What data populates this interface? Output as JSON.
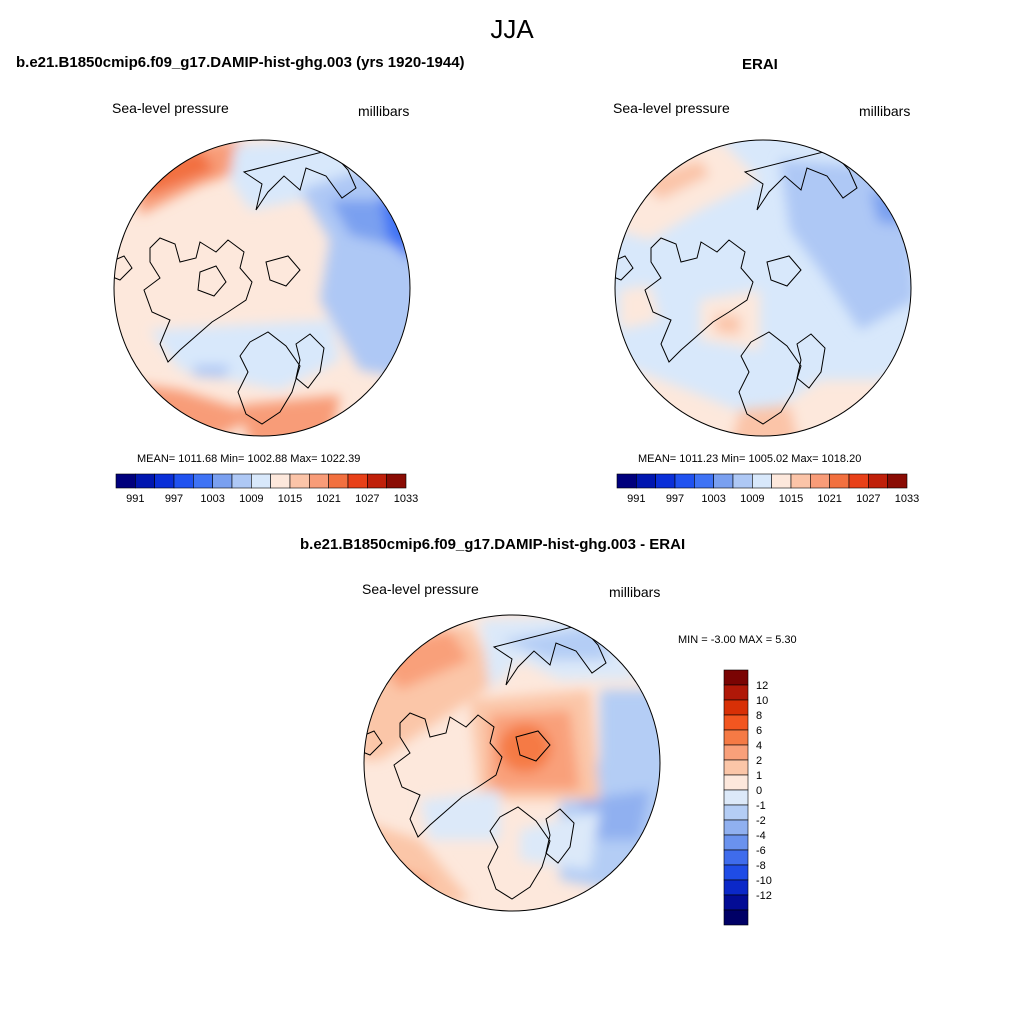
{
  "figure": {
    "season": "JJA"
  },
  "colors": {
    "abs_scale": [
      "#00007d",
      "#0016b0",
      "#0a2fd8",
      "#2052f0",
      "#3f73f5",
      "#7aa0f0",
      "#aec8f5",
      "#d8e8fb",
      "#fde8dc",
      "#fbc4a8",
      "#f89c78",
      "#f2703f",
      "#e84018",
      "#c0200a",
      "#8a0c04"
    ],
    "diff_scale": [
      "#7a0403",
      "#b01808",
      "#d83006",
      "#f25620",
      "#f57a45",
      "#f9a07a",
      "#fbc6a8",
      "#fde8dc",
      "#dce9f9",
      "#b4cdf5",
      "#90b0f0",
      "#6a92ee",
      "#3f6cec",
      "#1f4ce6",
      "#0b28c8",
      "#030c95",
      "#000066"
    ]
  },
  "panel_left": {
    "title": "b.e21.B1850cmip6.f09_g17.DAMIP-hist-ghg.003 (yrs 1920-1944)",
    "variable": "Sea-level pressure",
    "units": "millibars",
    "stats": "MEAN= 1011.68  Min= 1002.88  Max= 1022.39",
    "ticks": [
      "991",
      "997",
      "1003",
      "1009",
      "1015",
      "1021",
      "1027",
      "1033"
    ]
  },
  "panel_right": {
    "title": "ERAI",
    "variable": "Sea-level pressure",
    "units": "millibars",
    "stats": "MEAN= 1011.23  Min= 1005.02  Max= 1018.20",
    "ticks": [
      "991",
      "997",
      "1003",
      "1009",
      "1015",
      "1021",
      "1027",
      "1033"
    ]
  },
  "panel_diff": {
    "title": "b.e21.B1850cmip6.f09_g17.DAMIP-hist-ghg.003 - ERAI",
    "variable": "Sea-level pressure",
    "units": "millibars",
    "minmax": "MIN =  -3.00 MAX =   5.30",
    "ticks": [
      "12",
      "10",
      "8",
      "6",
      "4",
      "2",
      "1",
      "0",
      "-1",
      "-2",
      "-4",
      "-6",
      "-8",
      "-10",
      "-12"
    ]
  }
}
